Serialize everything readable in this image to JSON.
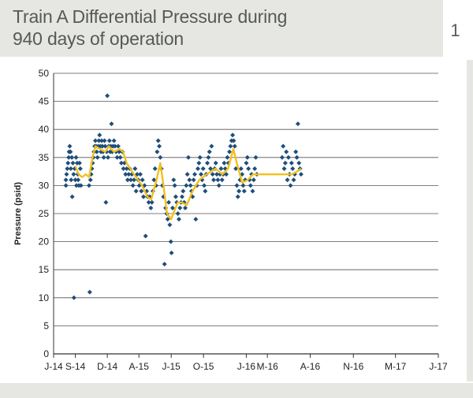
{
  "header": {
    "title_line1": "Train A Differential Pressure during",
    "title_line2": "940 days of operation",
    "figure_number": "1"
  },
  "colors": {
    "points": "#1f4e79",
    "trend": "#f2c01e",
    "grid": "#555555",
    "panel": "#e6e7e3"
  },
  "chart_data": {
    "type": "scatter",
    "title": "",
    "xlabel": "",
    "ylabel": "Pressure (psid)",
    "ylim": [
      0,
      50
    ],
    "yticks": [
      0,
      5,
      10,
      15,
      20,
      25,
      30,
      35,
      40,
      45,
      50
    ],
    "xlim": [
      "2014-07-01",
      "2017-07-01"
    ],
    "xticks": [
      {
        "date": "2014-07-01",
        "label": "J-14"
      },
      {
        "date": "2014-09-01",
        "label": "S-14"
      },
      {
        "date": "2014-12-01",
        "label": "D-14"
      },
      {
        "date": "2015-03-01",
        "label": "A-15"
      },
      {
        "date": "2015-06-01",
        "label": "J-15"
      },
      {
        "date": "2015-09-01",
        "label": "O-15"
      },
      {
        "date": "2016-01-01",
        "label": "J-16"
      },
      {
        "date": "2016-03-01",
        "label": "M-16"
      },
      {
        "date": "2016-07-01",
        "label": "A-16"
      },
      {
        "date": "2016-11-01",
        "label": "N-16"
      },
      {
        "date": "2017-03-01",
        "label": "M-17"
      },
      {
        "date": "2017-07-01",
        "label": "J-17"
      }
    ],
    "grid": "horizontal",
    "series": [
      {
        "kind": "scatter",
        "color": "#1f4e79",
        "points": [
          [
            "2014-08-05",
            30
          ],
          [
            "2014-08-05",
            31
          ],
          [
            "2014-08-07",
            32
          ],
          [
            "2014-08-09",
            33
          ],
          [
            "2014-08-11",
            34
          ],
          [
            "2014-08-13",
            35
          ],
          [
            "2014-08-14",
            36
          ],
          [
            "2014-08-16",
            37
          ],
          [
            "2014-08-18",
            36
          ],
          [
            "2014-08-19",
            33
          ],
          [
            "2014-08-20",
            31
          ],
          [
            "2014-08-22",
            35
          ],
          [
            "2014-08-23",
            28
          ],
          [
            "2014-08-25",
            34
          ],
          [
            "2014-08-27",
            32
          ],
          [
            "2014-08-28",
            10
          ],
          [
            "2014-08-30",
            33
          ],
          [
            "2014-09-01",
            31
          ],
          [
            "2014-09-03",
            35
          ],
          [
            "2014-09-04",
            30
          ],
          [
            "2014-09-06",
            34
          ],
          [
            "2014-09-08",
            32
          ],
          [
            "2014-09-09",
            31
          ],
          [
            "2014-09-11",
            30
          ],
          [
            "2014-09-13",
            34
          ],
          [
            "2014-09-15",
            33
          ],
          [
            "2014-09-17",
            30
          ],
          [
            "2014-10-10",
            30
          ],
          [
            "2014-10-12",
            11
          ],
          [
            "2014-10-14",
            31
          ],
          [
            "2014-10-16",
            32
          ],
          [
            "2014-10-18",
            33
          ],
          [
            "2014-10-20",
            34
          ],
          [
            "2014-10-22",
            35
          ],
          [
            "2014-10-24",
            36
          ],
          [
            "2014-10-26",
            37
          ],
          [
            "2014-10-28",
            38
          ],
          [
            "2014-10-30",
            37
          ],
          [
            "2014-11-01",
            36
          ],
          [
            "2014-11-03",
            35
          ],
          [
            "2014-11-05",
            37
          ],
          [
            "2014-11-07",
            38
          ],
          [
            "2014-11-09",
            39
          ],
          [
            "2014-11-11",
            37
          ],
          [
            "2014-11-13",
            36
          ],
          [
            "2014-11-15",
            38
          ],
          [
            "2014-11-17",
            37
          ],
          [
            "2014-11-19",
            36
          ],
          [
            "2014-11-21",
            35
          ],
          [
            "2014-11-23",
            38
          ],
          [
            "2014-11-25",
            37
          ],
          [
            "2014-11-27",
            27
          ],
          [
            "2014-11-29",
            36
          ],
          [
            "2014-12-01",
            46
          ],
          [
            "2014-12-03",
            35
          ],
          [
            "2014-12-05",
            37
          ],
          [
            "2014-12-07",
            38
          ],
          [
            "2014-12-09",
            36
          ],
          [
            "2014-12-11",
            37
          ],
          [
            "2014-12-13",
            41
          ],
          [
            "2014-12-15",
            36
          ],
          [
            "2014-12-17",
            37
          ],
          [
            "2014-12-20",
            38
          ],
          [
            "2014-12-23",
            37
          ],
          [
            "2014-12-26",
            36
          ],
          [
            "2014-12-29",
            35
          ],
          [
            "2015-01-01",
            37
          ],
          [
            "2015-01-04",
            36
          ],
          [
            "2015-01-07",
            35
          ],
          [
            "2015-01-10",
            34
          ],
          [
            "2015-01-13",
            36
          ],
          [
            "2015-01-16",
            33
          ],
          [
            "2015-01-19",
            34
          ],
          [
            "2015-01-22",
            32
          ],
          [
            "2015-01-25",
            33
          ],
          [
            "2015-01-28",
            31
          ],
          [
            "2015-01-31",
            32
          ],
          [
            "2015-02-03",
            33
          ],
          [
            "2015-02-06",
            31
          ],
          [
            "2015-02-09",
            32
          ],
          [
            "2015-02-12",
            30
          ],
          [
            "2015-02-15",
            31
          ],
          [
            "2015-02-18",
            33
          ],
          [
            "2015-02-21",
            29
          ],
          [
            "2015-02-24",
            32
          ],
          [
            "2015-02-27",
            31
          ],
          [
            "2015-03-02",
            30
          ],
          [
            "2015-03-05",
            32
          ],
          [
            "2015-03-08",
            29
          ],
          [
            "2015-03-11",
            31
          ],
          [
            "2015-03-14",
            28
          ],
          [
            "2015-03-17",
            30
          ],
          [
            "2015-03-20",
            21
          ],
          [
            "2015-03-23",
            29
          ],
          [
            "2015-03-26",
            28
          ],
          [
            "2015-03-29",
            27
          ],
          [
            "2015-04-01",
            28
          ],
          [
            "2015-04-04",
            26
          ],
          [
            "2015-04-07",
            27
          ],
          [
            "2015-04-10",
            29
          ],
          [
            "2015-04-13",
            31
          ],
          [
            "2015-04-16",
            33
          ],
          [
            "2015-04-19",
            30
          ],
          [
            "2015-04-22",
            36
          ],
          [
            "2015-04-25",
            38
          ],
          [
            "2015-04-28",
            37
          ],
          [
            "2015-05-01",
            35
          ],
          [
            "2015-05-04",
            33
          ],
          [
            "2015-05-07",
            30
          ],
          [
            "2015-05-10",
            28
          ],
          [
            "2015-05-13",
            16
          ],
          [
            "2015-05-16",
            26
          ],
          [
            "2015-05-19",
            25
          ],
          [
            "2015-05-22",
            24
          ],
          [
            "2015-05-25",
            27
          ],
          [
            "2015-05-28",
            23
          ],
          [
            "2015-05-31",
            20
          ],
          [
            "2015-06-02",
            18
          ],
          [
            "2015-06-05",
            26
          ],
          [
            "2015-06-08",
            31
          ],
          [
            "2015-06-11",
            30
          ],
          [
            "2015-06-14",
            28
          ],
          [
            "2015-06-17",
            27
          ],
          [
            "2015-06-20",
            25
          ],
          [
            "2015-06-23",
            24
          ],
          [
            "2015-06-26",
            26
          ],
          [
            "2015-06-29",
            27
          ],
          [
            "2015-07-02",
            28
          ],
          [
            "2015-07-05",
            29
          ],
          [
            "2015-07-08",
            27
          ],
          [
            "2015-07-11",
            26
          ],
          [
            "2015-07-14",
            30
          ],
          [
            "2015-07-17",
            32
          ],
          [
            "2015-07-20",
            35
          ],
          [
            "2015-07-23",
            31
          ],
          [
            "2015-07-26",
            30
          ],
          [
            "2015-07-29",
            29
          ],
          [
            "2015-08-01",
            28
          ],
          [
            "2015-08-04",
            31
          ],
          [
            "2015-08-07",
            32
          ],
          [
            "2015-08-10",
            24
          ],
          [
            "2015-08-13",
            30
          ],
          [
            "2015-08-16",
            33
          ],
          [
            "2015-08-19",
            34
          ],
          [
            "2015-08-22",
            35
          ],
          [
            "2015-08-25",
            32
          ],
          [
            "2015-08-28",
            31
          ],
          [
            "2015-08-31",
            33
          ],
          [
            "2015-09-03",
            30
          ],
          [
            "2015-09-06",
            29
          ],
          [
            "2015-09-09",
            32
          ],
          [
            "2015-09-12",
            34
          ],
          [
            "2015-09-15",
            35
          ],
          [
            "2015-09-18",
            36
          ],
          [
            "2015-09-21",
            33
          ],
          [
            "2015-09-24",
            37
          ],
          [
            "2015-09-27",
            32
          ],
          [
            "2015-09-30",
            31
          ],
          [
            "2015-10-03",
            33
          ],
          [
            "2015-10-06",
            34
          ],
          [
            "2015-10-09",
            32
          ],
          [
            "2015-10-12",
            31
          ],
          [
            "2015-10-15",
            30
          ],
          [
            "2015-10-18",
            32
          ],
          [
            "2015-10-21",
            33
          ],
          [
            "2015-10-24",
            31
          ],
          [
            "2015-10-27",
            32
          ],
          [
            "2015-10-30",
            34
          ],
          [
            "2015-11-02",
            33
          ],
          [
            "2015-11-05",
            32
          ],
          [
            "2015-11-08",
            35
          ],
          [
            "2015-11-11",
            34
          ],
          [
            "2015-11-14",
            36
          ],
          [
            "2015-11-17",
            37
          ],
          [
            "2015-11-20",
            38
          ],
          [
            "2015-11-23",
            39
          ],
          [
            "2015-11-26",
            38
          ],
          [
            "2015-11-29",
            37
          ],
          [
            "2015-12-02",
            33
          ],
          [
            "2015-12-05",
            30
          ],
          [
            "2015-12-08",
            28
          ],
          [
            "2015-12-11",
            29
          ],
          [
            "2015-12-14",
            31
          ],
          [
            "2015-12-17",
            33
          ],
          [
            "2015-12-20",
            32
          ],
          [
            "2015-12-23",
            30
          ],
          [
            "2015-12-26",
            29
          ],
          [
            "2015-12-29",
            31
          ],
          [
            "2016-01-01",
            34
          ],
          [
            "2016-01-04",
            35
          ],
          [
            "2016-01-07",
            33
          ],
          [
            "2016-01-10",
            31
          ],
          [
            "2016-01-13",
            30
          ],
          [
            "2016-01-16",
            32
          ],
          [
            "2016-01-19",
            29
          ],
          [
            "2016-01-22",
            31
          ],
          [
            "2016-01-25",
            33
          ],
          [
            "2016-01-28",
            35
          ],
          [
            "2016-01-31",
            32
          ],
          [
            "2016-04-12",
            35
          ],
          [
            "2016-04-15",
            37
          ],
          [
            "2016-04-18",
            33
          ],
          [
            "2016-04-21",
            34
          ],
          [
            "2016-04-24",
            36
          ],
          [
            "2016-04-27",
            31
          ],
          [
            "2016-04-30",
            35
          ],
          [
            "2016-05-03",
            32
          ],
          [
            "2016-05-06",
            30
          ],
          [
            "2016-05-09",
            34
          ],
          [
            "2016-05-12",
            33
          ],
          [
            "2016-05-15",
            31
          ],
          [
            "2016-05-18",
            32
          ],
          [
            "2016-05-21",
            36
          ],
          [
            "2016-05-24",
            35
          ],
          [
            "2016-05-27",
            41
          ],
          [
            "2016-05-30",
            34
          ],
          [
            "2016-06-02",
            33
          ],
          [
            "2016-06-05",
            32
          ]
        ]
      },
      {
        "kind": "line",
        "color": "#f2c01e",
        "points": [
          [
            "2014-09-01",
            33.5
          ],
          [
            "2014-09-10",
            32
          ],
          [
            "2014-09-20",
            31.5
          ],
          [
            "2014-10-01",
            32
          ],
          [
            "2014-10-10",
            31.5
          ],
          [
            "2014-10-20",
            35
          ],
          [
            "2014-10-28",
            37
          ],
          [
            "2014-11-10",
            36.5
          ],
          [
            "2014-11-25",
            36
          ],
          [
            "2014-12-05",
            37
          ],
          [
            "2014-12-20",
            36
          ],
          [
            "2015-01-05",
            36.5
          ],
          [
            "2015-01-15",
            36
          ],
          [
            "2015-01-25",
            34
          ],
          [
            "2015-02-15",
            32
          ],
          [
            "2015-03-10",
            30
          ],
          [
            "2015-03-25",
            28
          ],
          [
            "2015-04-05",
            27.5
          ],
          [
            "2015-04-20",
            31
          ],
          [
            "2015-05-01",
            34
          ],
          [
            "2015-05-10",
            30
          ],
          [
            "2015-05-20",
            25
          ],
          [
            "2015-06-01",
            24
          ],
          [
            "2015-06-10",
            25.5
          ],
          [
            "2015-06-20",
            27
          ],
          [
            "2015-07-01",
            27
          ],
          [
            "2015-07-15",
            26.5
          ],
          [
            "2015-08-01",
            29
          ],
          [
            "2015-08-20",
            31
          ],
          [
            "2015-09-10",
            32
          ],
          [
            "2015-10-05",
            33
          ],
          [
            "2015-10-25",
            32
          ],
          [
            "2015-11-10",
            33
          ],
          [
            "2015-11-25",
            36.5
          ],
          [
            "2015-12-05",
            34
          ],
          [
            "2015-12-20",
            30.5
          ],
          [
            "2016-01-05",
            31
          ],
          [
            "2016-01-20",
            32
          ],
          [
            "2016-04-10",
            32
          ],
          [
            "2016-04-20",
            32
          ],
          [
            "2016-05-10",
            32
          ],
          [
            "2016-05-25",
            32.5
          ],
          [
            "2016-06-05",
            33
          ]
        ]
      }
    ]
  }
}
